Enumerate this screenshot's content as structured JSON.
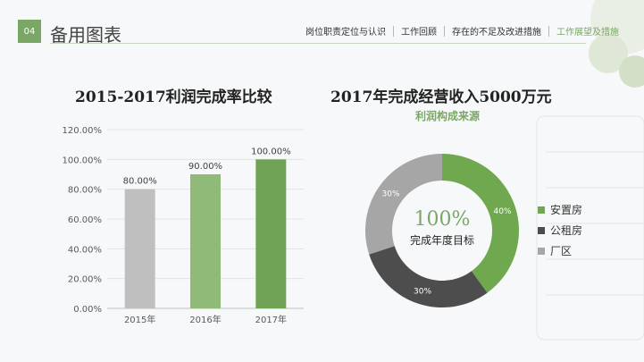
{
  "header": {
    "badge": "04",
    "title": "备用图表",
    "nav": [
      {
        "label": "岗位职责定位与认识",
        "active": false
      },
      {
        "label": "工作回顾",
        "active": false
      },
      {
        "label": "存在的不足及改进措施",
        "active": false
      },
      {
        "label": "工作展望及措施",
        "active": true
      }
    ]
  },
  "colors": {
    "accent": "#7aa766",
    "bar_2015": "#bfbfbf",
    "bar_2016": "#8fba78",
    "bar_2017": "#70a356",
    "donut_green": "#70a850",
    "donut_dark": "#4d4d4d",
    "donut_gray": "#a6a6a6"
  },
  "left": {
    "title": "2015-2017利润完成率比较"
  },
  "right": {
    "title": "2017年完成经营收入5000万元",
    "subtitle": "利润构成来源",
    "center_value": "100%",
    "center_label": "完成年度目标"
  },
  "chart_data": [
    {
      "type": "bar",
      "title": "2015-2017利润完成率比较",
      "categories": [
        "2015年",
        "2016年",
        "2017年"
      ],
      "values": [
        80.0,
        90.0,
        100.0
      ],
      "data_labels": [
        "80.00%",
        "90.00%",
        "100.00%"
      ],
      "y_ticks": [
        "0.00%",
        "20.00%",
        "40.00%",
        "60.00%",
        "80.00%",
        "100.00%",
        "120.00%"
      ],
      "ylim": [
        0,
        120
      ],
      "grid": true
    },
    {
      "type": "pie",
      "title": "2017年完成经营收入5000万元",
      "subtitle": "利润构成来源",
      "donut": true,
      "categories": [
        "安置房",
        "公租房",
        "厂区"
      ],
      "values": [
        40,
        30,
        30
      ],
      "data_labels": [
        "40%",
        "30%",
        "30%"
      ],
      "legend": "right"
    }
  ]
}
